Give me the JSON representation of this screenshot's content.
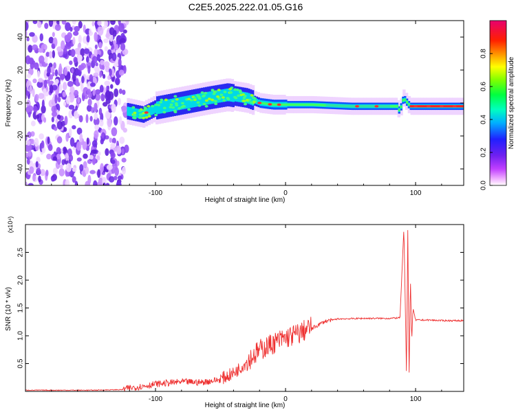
{
  "figure_title": "C2E5.2025.222.01.05.G16",
  "chart_data": [
    {
      "type": "heatmap",
      "xlabel": "Height of straight line (km)",
      "ylabel": "Frequency (Hz)",
      "xlim": [
        -200,
        137
      ],
      "ylim": [
        -50,
        50
      ],
      "xticks": [
        -100,
        0,
        100
      ],
      "xtick_labels": [
        "-100",
        "0",
        "100"
      ],
      "yticks": [
        -40,
        -20,
        0,
        20,
        40
      ],
      "ytick_labels": [
        "-40",
        "-20",
        "0",
        "20",
        "40"
      ],
      "colorbar": {
        "label": "Normalized spectral amplitude",
        "range": [
          0,
          1
        ],
        "ticks": [
          0.0,
          0.2,
          0.4,
          0.6,
          0.8
        ],
        "tick_labels": [
          "0.0",
          "0.2",
          "0.4",
          "0.6",
          "0.8"
        ],
        "colors": [
          "#ffffff",
          "#ff00ff",
          "#a020f0",
          "#2020ff",
          "#00c8ff",
          "#00ff90",
          "#60ff00",
          "#ffff00",
          "#ff8000",
          "#ff0000",
          "#e0006a"
        ]
      },
      "features": {
        "noise_region_x": [
          -200,
          -122
        ],
        "signal_centerline": [
          {
            "x": -122,
            "y": -5
          },
          {
            "x": -110,
            "y": -7
          },
          {
            "x": -100,
            "y": -3
          },
          {
            "x": -80,
            "y": 0
          },
          {
            "x": -60,
            "y": 3
          },
          {
            "x": -45,
            "y": 5
          },
          {
            "x": -30,
            "y": 3
          },
          {
            "x": -20,
            "y": 0
          },
          {
            "x": -10,
            "y": -1
          },
          {
            "x": 0,
            "y": -1
          },
          {
            "x": 20,
            "y": -1
          },
          {
            "x": 50,
            "y": -2
          },
          {
            "x": 85,
            "y": -2
          },
          {
            "x": 87,
            "y": -5
          },
          {
            "x": 90,
            "y": 3
          },
          {
            "x": 95,
            "y": -2
          },
          {
            "x": 137,
            "y": -2
          }
        ]
      }
    },
    {
      "type": "line",
      "xlabel": "Height of straight line (km)",
      "ylabel": "SNR (10 * v/v)",
      "y_multiplier": "(x10⁴)",
      "xlim": [
        -200,
        137
      ],
      "ylim": [
        0,
        3
      ],
      "xticks": [
        -100,
        0,
        100
      ],
      "xtick_labels": [
        "-100",
        "0",
        "100"
      ],
      "yticks": [
        0.5,
        1.0,
        1.5,
        2.0,
        2.5
      ],
      "ytick_labels": [
        "0.5",
        "1.0",
        "1.5",
        "2.0",
        "2.5"
      ],
      "line_color": "#ee3030",
      "series": [
        {
          "x": [
            -200,
            -150,
            -125,
            -110,
            -100,
            -80,
            -65,
            -50,
            -40,
            -30,
            -20,
            -10,
            0,
            10,
            20,
            30,
            40,
            60,
            80,
            88,
            91,
            93,
            94,
            95,
            96,
            97,
            98,
            100,
            110,
            120,
            137
          ],
          "values": [
            0.02,
            0.02,
            0.03,
            0.08,
            0.12,
            0.16,
            0.15,
            0.2,
            0.3,
            0.5,
            0.7,
            0.82,
            0.92,
            1.0,
            1.12,
            1.25,
            1.3,
            1.31,
            1.31,
            1.32,
            2.95,
            0.3,
            2.9,
            0.25,
            2.05,
            0.9,
            1.5,
            1.28,
            1.28,
            1.27,
            1.27
          ]
        }
      ]
    }
  ]
}
